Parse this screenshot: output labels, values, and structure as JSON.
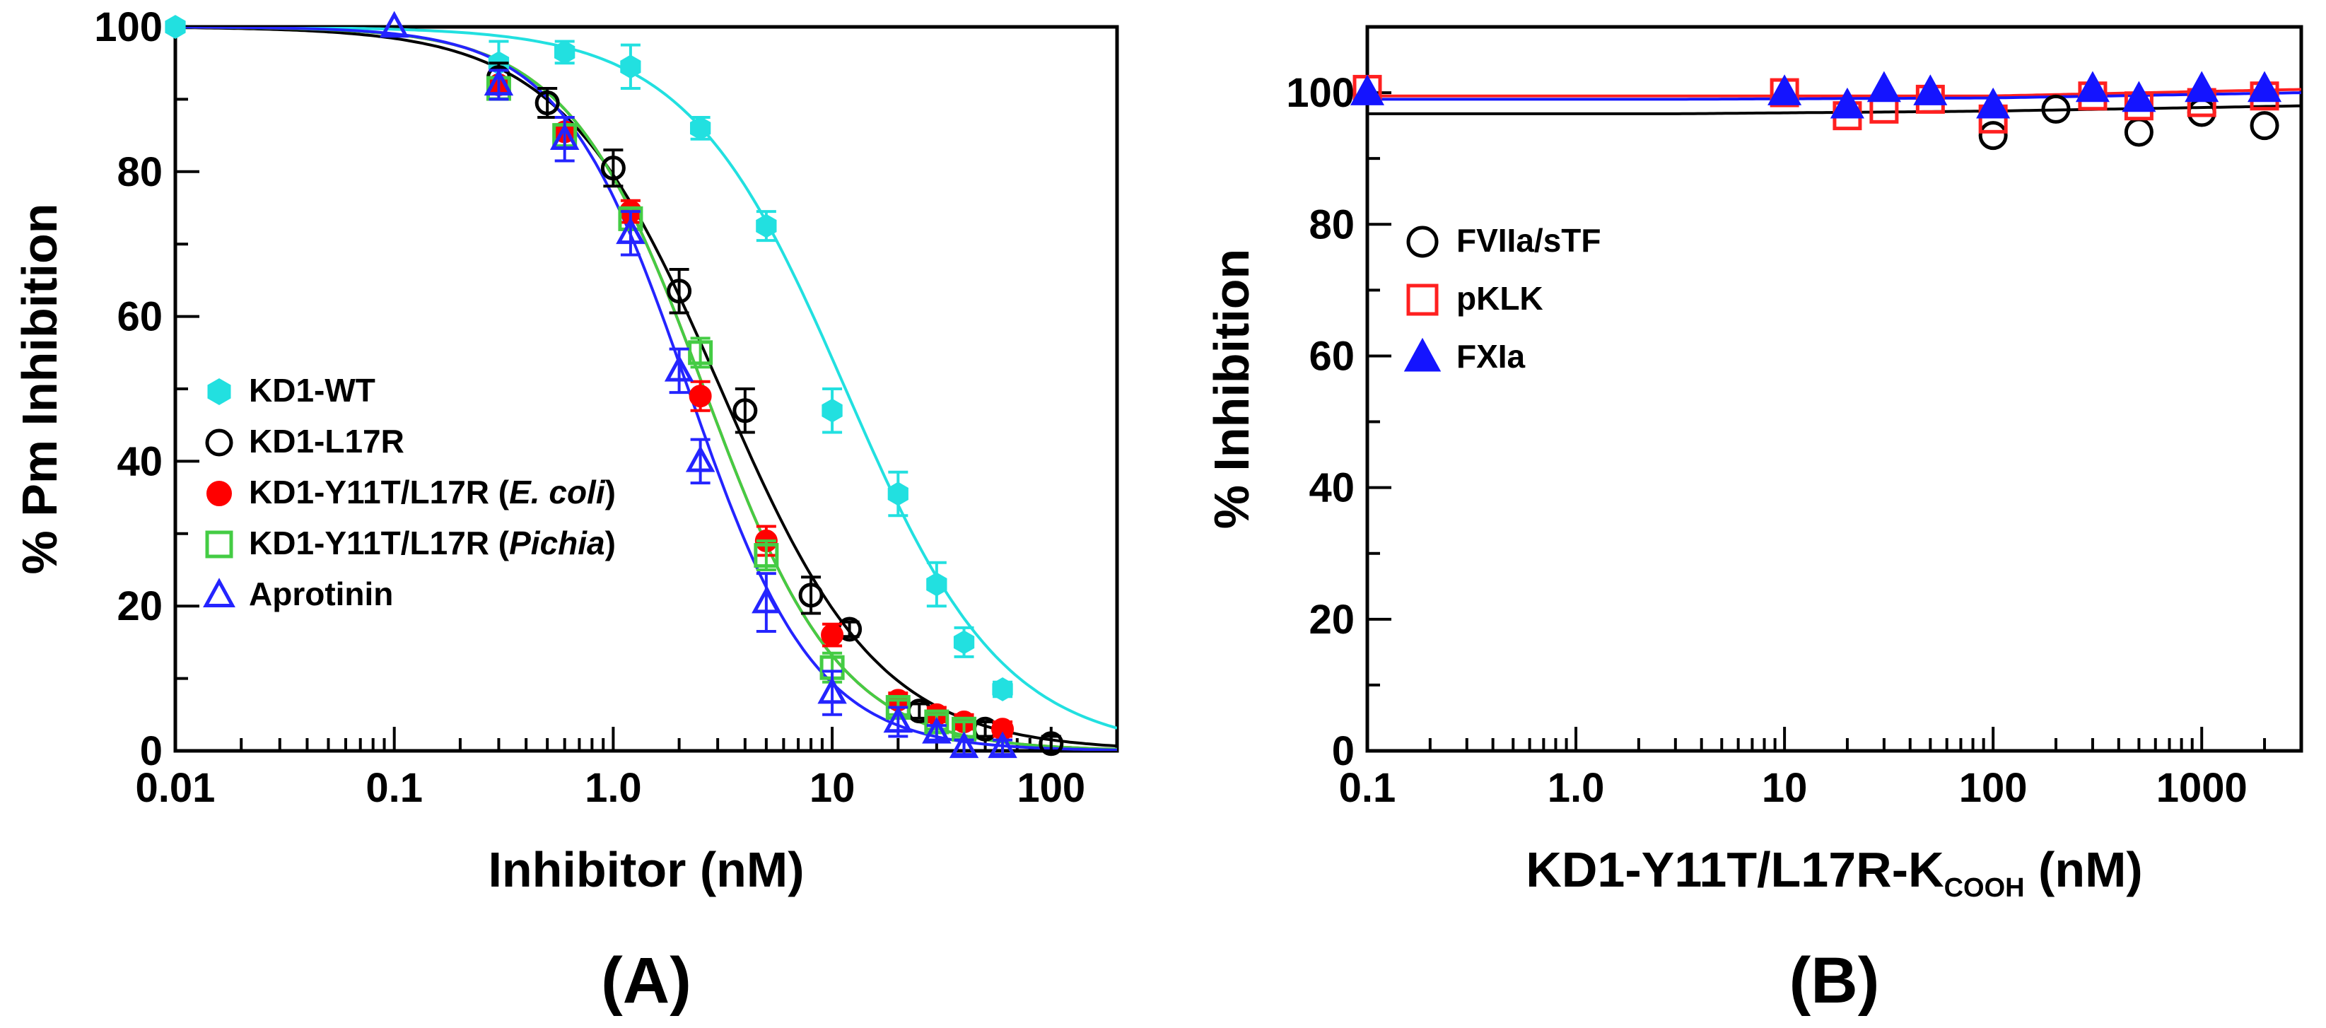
{
  "chart_data": [
    {
      "panel": "(A)",
      "type": "scatter",
      "xscale": "log",
      "xlim": [
        0.01,
        200
      ],
      "ylim": [
        0,
        100
      ],
      "xlabel": "Inhibitor (nM)",
      "ylabel": "% Pm Inhibition",
      "xticks": [
        "0.01",
        "0.1",
        "1.0",
        "10",
        "100"
      ],
      "yticks": [
        "0",
        "20",
        "40",
        "60",
        "80",
        "100"
      ],
      "legend_position": "left-middle",
      "series": [
        {
          "name": "KD1-WT",
          "label_parts": [
            {
              "text": "KD1-WT",
              "italic": false
            }
          ],
          "color": "#22e0e0",
          "marker": "hexagon-filled",
          "ic50": 11.5,
          "hill": 1.2,
          "x": [
            0.01,
            0.3,
            0.6,
            1.2,
            2.5,
            5,
            10,
            20,
            30,
            40,
            60
          ],
          "y": [
            100,
            95,
            96.5,
            94.5,
            86,
            72.5,
            47,
            35.5,
            23,
            15,
            8.5
          ],
          "err": [
            0,
            3,
            1.5,
            3,
            1.5,
            2,
            3,
            3,
            3,
            2,
            1
          ]
        },
        {
          "name": "KD1-L17R",
          "label_parts": [
            {
              "text": "KD1-L17R",
              "italic": false
            }
          ],
          "color": "#000000",
          "marker": "circle-open",
          "ic50": 3.1,
          "hill": 1.2,
          "x": [
            0.3,
            0.5,
            1.0,
            2.0,
            4.0,
            8.0,
            12,
            25,
            50,
            100
          ],
          "y": [
            93,
            89.5,
            80.5,
            63.5,
            47,
            21.5,
            16.8,
            5.5,
            3,
            1
          ],
          "err": [
            2,
            2,
            2.5,
            3,
            3,
            2.5,
            1,
            1,
            1,
            1
          ]
        },
        {
          "name": "KD1-Y11T/L17R (E. coli)",
          "label_parts": [
            {
              "text": "KD1-Y11T/L17R (",
              "italic": false
            },
            {
              "text": "E. coli",
              "italic": true
            },
            {
              "text": ")",
              "italic": false
            }
          ],
          "color": "#ff0000",
          "marker": "circle-filled",
          "ic50": 2.6,
          "hill": 1.4,
          "x": [
            0.3,
            0.6,
            1.2,
            2.5,
            5,
            10,
            20,
            30,
            40,
            60
          ],
          "y": [
            92,
            85.5,
            74.5,
            49,
            29,
            16,
            7,
            5,
            4,
            3
          ],
          "err": [
            2,
            2,
            1.5,
            2,
            2,
            1.5,
            1,
            1,
            1,
            1
          ]
        },
        {
          "name": "KD1-Y11T/L17R (Pichia)",
          "label_parts": [
            {
              "text": "KD1-Y11T/L17R (",
              "italic": false
            },
            {
              "text": "Pichia",
              "italic": true
            },
            {
              "text": ")",
              "italic": false
            }
          ],
          "color": "#44cc44",
          "marker": "square-open",
          "ic50": 2.6,
          "hill": 1.4,
          "x": [
            0.3,
            0.6,
            1.2,
            2.5,
            5,
            10,
            20,
            30,
            40
          ],
          "y": [
            91.5,
            85,
            73.5,
            55,
            27,
            11.5,
            6,
            4,
            3
          ],
          "err": [
            1.5,
            1.5,
            1.5,
            2,
            2,
            2,
            1,
            1,
            1
          ]
        },
        {
          "name": "Aprotinin",
          "label_parts": [
            {
              "text": "Aprotinin",
              "italic": false
            }
          ],
          "color": "#2424ff",
          "marker": "triangle-open",
          "ic50": 2.2,
          "hill": 1.5,
          "x": [
            0.1,
            0.3,
            0.6,
            1.2,
            2.0,
            2.5,
            5,
            10,
            20,
            30,
            40,
            60
          ],
          "y": [
            100,
            92,
            84.5,
            71.5,
            52.5,
            40,
            20.5,
            8,
            4,
            2.5,
            0.5,
            0.5
          ],
          "err": [
            0,
            2,
            3,
            3,
            3,
            3,
            4,
            3,
            2,
            1,
            1,
            1
          ]
        }
      ]
    },
    {
      "panel": "(B)",
      "type": "scatter",
      "xscale": "log",
      "xlim": [
        0.1,
        3000
      ],
      "ylim": [
        0,
        110
      ],
      "xlabel": "KD1-Y11T/L17R-K",
      "xlabel_sub": "COOH",
      "xlabel_tail": " (nM)",
      "ylabel": "% Inhibition",
      "xticks": [
        "0.1",
        "1.0",
        "10",
        "100",
        "1000"
      ],
      "yticks": [
        "0",
        "20",
        "40",
        "60",
        "80",
        "100"
      ],
      "legend_position": "left-upper",
      "series": [
        {
          "name": "FVIIa/sTF",
          "label_parts": [
            {
              "text": "FVIIa/sTF",
              "italic": false
            }
          ],
          "color": "#000000",
          "marker": "circle-open",
          "fit": [
            96.8,
            96.8,
            97.2,
            98.0
          ],
          "x": [
            100,
            200,
            500,
            1000,
            2000
          ],
          "y": [
            93.5,
            97.5,
            94,
            97,
            95
          ]
        },
        {
          "name": "pKLK",
          "label_parts": [
            {
              "text": "pKLK",
              "italic": false
            }
          ],
          "color": "#ff2020",
          "marker": "square-open",
          "fit": [
            99.5,
            99.5,
            99.5,
            100.5
          ],
          "x": [
            0.1,
            10,
            20,
            30,
            50,
            100,
            300,
            500,
            1000,
            2000
          ],
          "y": [
            100.5,
            100,
            96.5,
            97.5,
            99,
            96,
            99.5,
            98,
            98.5,
            99.5
          ]
        },
        {
          "name": "FXIa",
          "label_parts": [
            {
              "text": "FXIa",
              "italic": false
            }
          ],
          "color": "#1414ff",
          "marker": "triangle-filled",
          "fit": [
            99.0,
            99.0,
            99.2,
            100.0
          ],
          "x": [
            0.1,
            10,
            20,
            30,
            50,
            100,
            300,
            500,
            1000,
            2000
          ],
          "y": [
            100,
            100,
            98,
            100.5,
            100,
            98,
            100.5,
            99,
            100.5,
            100.5
          ]
        }
      ]
    }
  ]
}
